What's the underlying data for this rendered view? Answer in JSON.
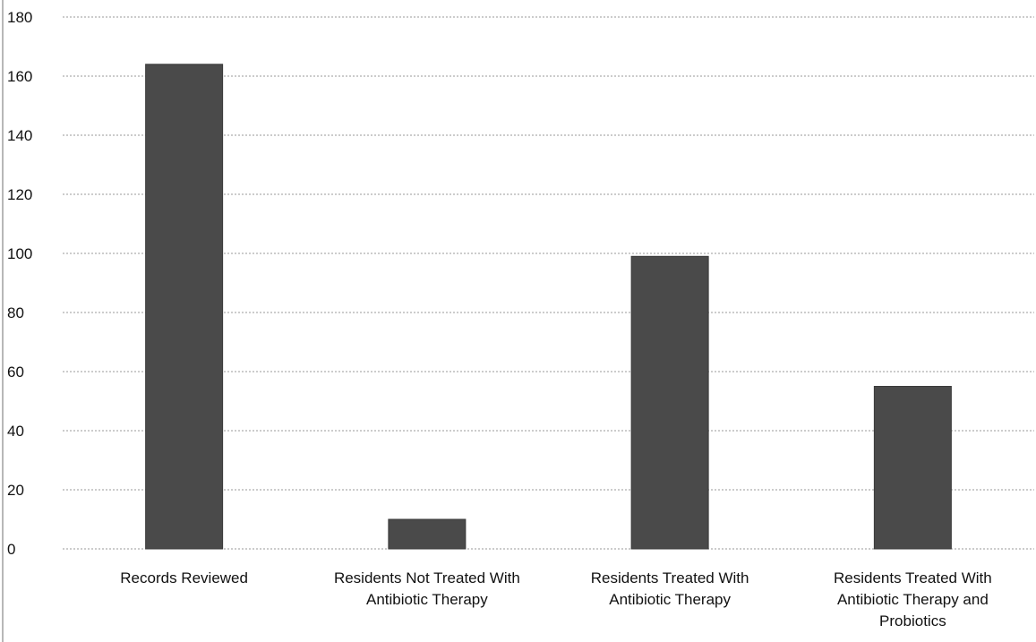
{
  "chart_data": {
    "type": "bar",
    "title": "",
    "xlabel": "",
    "ylabel": "",
    "categories": [
      "Records Reviewed",
      "Residents Not Treated With Antibiotic Therapy",
      "Residents Treated With Antibiotic Therapy",
      "Residents Treated With Antibiotic Therapy and Probiotics"
    ],
    "category_label_lines": [
      [
        "Records Reviewed"
      ],
      [
        "Residents Not Treated With",
        "Antibiotic Therapy"
      ],
      [
        "Residents Treated With",
        "Antibiotic Therapy"
      ],
      [
        "Residents Treated With",
        "Antibiotic Therapy and",
        "Probiotics"
      ]
    ],
    "values": [
      164,
      10,
      99,
      55
    ],
    "ylim": [
      0,
      180
    ],
    "yticks": [
      0,
      20,
      40,
      60,
      80,
      100,
      120,
      140,
      160,
      180
    ],
    "grid": true,
    "legend": "none",
    "bar_color": "#4a4a4a"
  }
}
